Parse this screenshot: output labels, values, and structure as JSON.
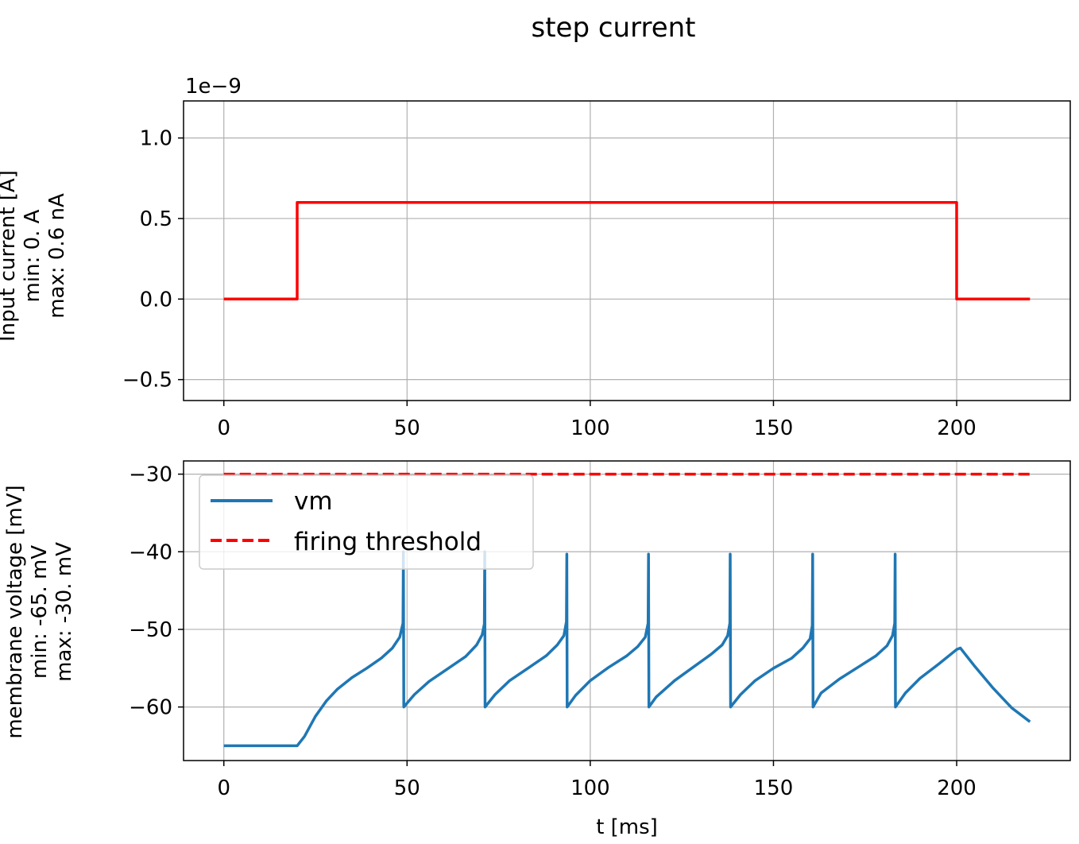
{
  "chart_data": [
    {
      "type": "line",
      "panel": "top",
      "title": "step current",
      "offset_text": "1e−9",
      "ylabel_lines": [
        "Input current [A]",
        "min: 0. A",
        "max: 0.6 nA"
      ],
      "xlabel": "",
      "xlim": [
        -11,
        231
      ],
      "ylim": [
        -0.63,
        1.23
      ],
      "xticks": [
        0,
        50,
        100,
        150,
        200
      ],
      "xtick_labels": [
        "0",
        "50",
        "100",
        "150",
        "200"
      ],
      "yticks": [
        -0.5,
        0.0,
        0.5,
        1.0
      ],
      "ytick_labels": [
        "−0.5",
        "0.0",
        "0.5",
        "1.0"
      ],
      "grid": true,
      "series": [
        {
          "color": "#ff0000",
          "style": "solid",
          "x": [
            0,
            20,
            20,
            200,
            200,
            220
          ],
          "y": [
            0,
            0,
            0.6,
            0.6,
            0,
            0
          ]
        }
      ]
    },
    {
      "type": "line",
      "panel": "bottom",
      "title": "",
      "ylabel_lines": [
        "membrane voltage [mV]",
        "min: -65. mV",
        "max: -30. mV"
      ],
      "xlabel": "t [ms]",
      "xlim": [
        -11,
        231
      ],
      "ylim": [
        -66.9,
        -28.3
      ],
      "xticks": [
        0,
        50,
        100,
        150,
        200
      ],
      "xtick_labels": [
        "0",
        "50",
        "100",
        "150",
        "200"
      ],
      "yticks": [
        -60,
        -50,
        -40,
        -30
      ],
      "ytick_labels": [
        "−60",
        "−50",
        "−40",
        "−30"
      ],
      "grid": true,
      "legend": {
        "placement": "upper-left"
      },
      "series": [
        {
          "name": "vm",
          "color": "#1f77b4",
          "style": "solid",
          "x": [
            0,
            20,
            22,
            25,
            28,
            31,
            35,
            39,
            43,
            46,
            48,
            48.9,
            49,
            49.1,
            52,
            56,
            61,
            66,
            69,
            70.5,
            71.1,
            71.2,
            71.3,
            74,
            78,
            83,
            88,
            91,
            92.8,
            93.5,
            93.6,
            93.7,
            96,
            100,
            105,
            110,
            113,
            115,
            115.8,
            115.9,
            116,
            118,
            123,
            128,
            133,
            136,
            137.5,
            138.1,
            138.2,
            138.3,
            141,
            145,
            150,
            155,
            158,
            160,
            160.6,
            160.7,
            160.8,
            163,
            168,
            173,
            178,
            181,
            182.5,
            183.1,
            183.2,
            183.3,
            186,
            190,
            195,
            200,
            201,
            205,
            210,
            215,
            220
          ],
          "y": [
            -65,
            -65,
            -63.8,
            -61.2,
            -59.2,
            -57.7,
            -56.2,
            -55.0,
            -53.7,
            -52.4,
            -51,
            -49.2,
            -40,
            -60,
            -58.4,
            -56.7,
            -55.1,
            -53.5,
            -52.0,
            -50.7,
            -49.3,
            -40,
            -60,
            -58.4,
            -56.6,
            -55.0,
            -53.4,
            -52.0,
            -50.8,
            -49.0,
            -40.3,
            -60,
            -58.5,
            -56.6,
            -54.9,
            -53.4,
            -52.2,
            -51.0,
            -49.2,
            -40.3,
            -60,
            -58.7,
            -56.6,
            -54.9,
            -53.2,
            -52.0,
            -50.8,
            -49.2,
            -40.3,
            -60,
            -58.4,
            -56.6,
            -55.0,
            -53.7,
            -52.4,
            -51.2,
            -49.5,
            -40.3,
            -60,
            -58.2,
            -56.4,
            -54.9,
            -53.4,
            -52.1,
            -50.8,
            -49.2,
            -40.3,
            -60,
            -58.2,
            -56.3,
            -54.5,
            -52.6,
            -52.4,
            -54.8,
            -57.6,
            -60.1,
            -61.9
          ]
        },
        {
          "name": "firing threshold",
          "color": "#ff0000",
          "style": "dashed",
          "x": [
            0,
            220
          ],
          "y": [
            -30,
            -30
          ]
        }
      ]
    }
  ]
}
